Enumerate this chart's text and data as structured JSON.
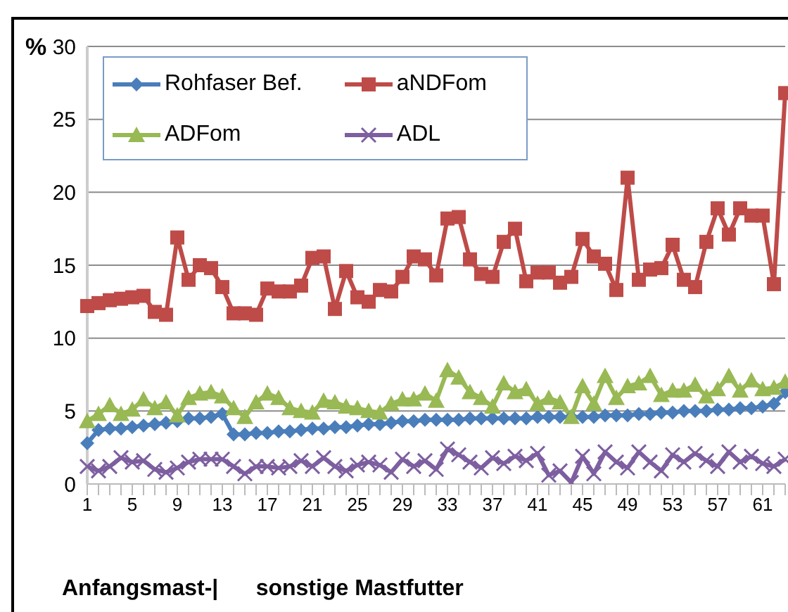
{
  "chart_data": {
    "type": "line",
    "ylabel": "%",
    "xlabel": "Anfangsmast-|      sonstige Mastfutter",
    "categories": [
      "1",
      null,
      null,
      null,
      "5",
      null,
      null,
      null,
      "9",
      null,
      null,
      null,
      "13",
      null,
      null,
      null,
      "17",
      null,
      null,
      null,
      "21",
      null,
      null,
      null,
      "25",
      null,
      null,
      null,
      "29",
      null,
      null,
      null,
      "33",
      null,
      null,
      null,
      "37",
      null,
      null,
      null,
      "41",
      null,
      null,
      null,
      "45",
      null,
      null,
      null,
      "49",
      null,
      null,
      null,
      "53",
      null,
      null,
      null,
      "57",
      null,
      null,
      null,
      "61",
      null,
      null
    ],
    "ylim": [
      0,
      30
    ],
    "yticks": [
      0,
      5,
      10,
      15,
      20,
      25,
      30
    ],
    "grid": "y",
    "legend": "top left",
    "series": [
      {
        "name": "Rohfaser Bef.",
        "color": "#4a7ebb",
        "marker": "diamond",
        "values": [
          2.8,
          3.7,
          3.8,
          3.8,
          3.9,
          4.0,
          4.1,
          4.2,
          4.3,
          4.5,
          4.5,
          4.6,
          4.8,
          3.4,
          3.4,
          3.5,
          3.5,
          3.6,
          3.6,
          3.7,
          3.8,
          3.8,
          3.9,
          3.9,
          4.0,
          4.1,
          4.1,
          4.2,
          4.3,
          4.3,
          4.4,
          4.4,
          4.4,
          4.4,
          4.5,
          4.5,
          4.5,
          4.5,
          4.5,
          4.5,
          4.6,
          4.6,
          4.6,
          4.6,
          4.6,
          4.6,
          4.7,
          4.7,
          4.7,
          4.8,
          4.8,
          4.9,
          4.9,
          5.0,
          5.0,
          5.0,
          5.1,
          5.1,
          5.2,
          5.2,
          5.3,
          5.5,
          6.3
        ]
      },
      {
        "name": "aNDFom",
        "color": "#be4b48",
        "marker": "square",
        "values": [
          12.2,
          12.4,
          12.6,
          12.7,
          12.8,
          12.9,
          11.8,
          11.6,
          16.9,
          14.0,
          15.0,
          14.8,
          13.5,
          11.7,
          11.7,
          11.6,
          13.4,
          13.2,
          13.2,
          13.6,
          15.5,
          15.6,
          12.0,
          14.6,
          12.8,
          12.5,
          13.3,
          13.2,
          14.2,
          15.6,
          15.4,
          14.3,
          18.2,
          18.3,
          15.4,
          14.4,
          14.2,
          16.6,
          17.5,
          13.9,
          14.5,
          14.5,
          13.8,
          14.2,
          16.8,
          15.6,
          15.1,
          13.3,
          21.0,
          14.0,
          14.7,
          14.8,
          16.4,
          14.0,
          13.5,
          16.6,
          18.9,
          17.1,
          18.9,
          18.4,
          18.4,
          13.7,
          26.8
        ]
      },
      {
        "name": "ADFom",
        "color": "#98b954",
        "marker": "triangle",
        "values": [
          4.3,
          4.8,
          5.4,
          4.8,
          5.1,
          5.8,
          5.2,
          5.6,
          4.7,
          5.9,
          6.2,
          6.3,
          6.0,
          5.2,
          4.6,
          5.6,
          6.2,
          5.9,
          5.2,
          5.0,
          4.9,
          5.7,
          5.6,
          5.3,
          5.2,
          5.0,
          4.9,
          5.5,
          5.8,
          5.8,
          6.2,
          5.7,
          7.8,
          7.3,
          6.3,
          5.9,
          5.3,
          6.9,
          6.3,
          6.5,
          5.5,
          5.9,
          5.6,
          4.6,
          6.7,
          5.5,
          7.4,
          5.9,
          6.7,
          6.9,
          7.4,
          6.1,
          6.4,
          6.4,
          6.8,
          6.0,
          6.5,
          7.4,
          6.4,
          7.1,
          6.5,
          6.6,
          7.0
        ]
      },
      {
        "name": "ADL",
        "color": "#7d5fa0",
        "marker": "cross",
        "values": [
          1.2,
          0.9,
          1.2,
          1.8,
          1.5,
          1.6,
          1.0,
          0.8,
          1.1,
          1.5,
          1.7,
          1.7,
          1.7,
          1.2,
          0.7,
          1.2,
          1.2,
          1.1,
          1.2,
          1.6,
          1.2,
          1.8,
          1.2,
          0.9,
          1.3,
          1.5,
          1.3,
          0.8,
          1.7,
          1.2,
          1.6,
          1.0,
          2.4,
          2.0,
          1.5,
          1.1,
          1.8,
          1.4,
          1.9,
          1.6,
          2.1,
          0.6,
          0.9,
          0.1,
          1.9,
          0.7,
          2.2,
          1.5,
          1.1,
          2.2,
          1.5,
          0.9,
          2.0,
          1.5,
          2.1,
          1.6,
          1.2,
          2.2,
          1.5,
          1.9,
          1.4,
          1.2,
          1.7
        ]
      }
    ]
  }
}
